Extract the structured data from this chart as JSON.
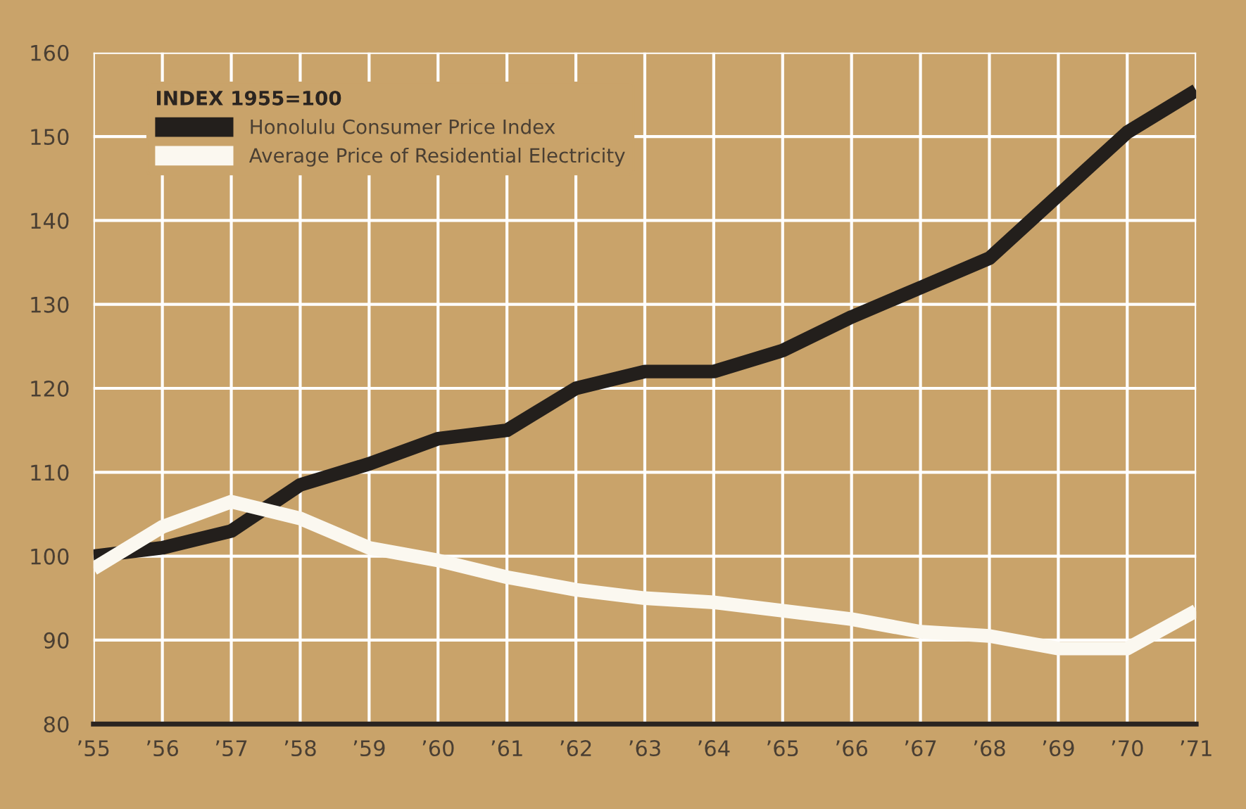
{
  "chart_data": {
    "type": "line",
    "legend_title": "INDEX 1955=100",
    "categories": [
      "’55",
      "’56",
      "’57",
      "’58",
      "’59",
      "’60",
      "’61",
      "’62",
      "’63",
      "’64",
      "’65",
      "’66",
      "’67",
      "’68",
      "’69",
      "’70",
      "’71"
    ],
    "series": [
      {
        "name": "Honolulu Consumer Price Index",
        "color": "#231f1c",
        "values": [
          100,
          101,
          103,
          108.5,
          111,
          114,
          115,
          120,
          122,
          122,
          124.5,
          128.5,
          132,
          135.5,
          143,
          150.5,
          155.5
        ]
      },
      {
        "name": "Average Price of Residential Electricity",
        "color": "#fbf8f0",
        "values": [
          98.5,
          103.5,
          106.5,
          104.5,
          101,
          99.5,
          97.5,
          96,
          95,
          94.5,
          93.5,
          92.5,
          91,
          90.5,
          89,
          89,
          93.5
        ]
      }
    ],
    "ylim": [
      80,
      160
    ],
    "yticks": [
      80,
      90,
      100,
      110,
      120,
      130,
      140,
      150,
      160
    ],
    "grid": true,
    "legend": "top left",
    "marker": "none",
    "line_style": "solid"
  }
}
